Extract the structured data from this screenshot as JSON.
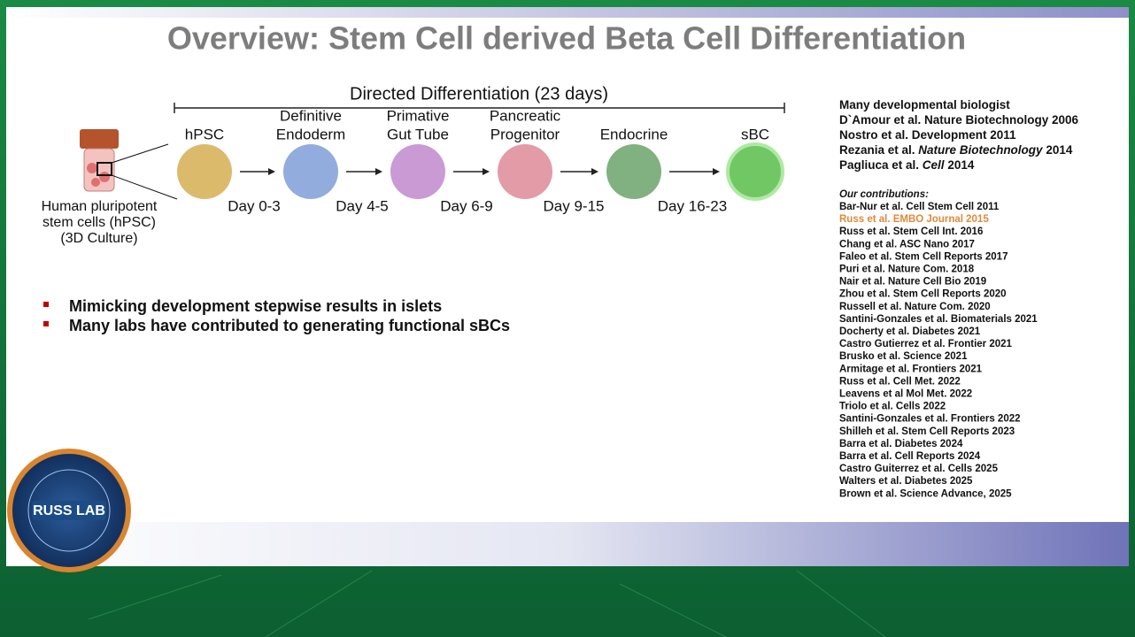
{
  "slide": {
    "title": "Overview: Stem Cell derived Beta Cell Differentiation",
    "diagram": {
      "bracket_label": "Directed Differentiation (23 days)",
      "source": {
        "lines": [
          "Human pluripotent",
          "stem cells (hPSC)",
          "(3D Culture)"
        ]
      },
      "stages": [
        {
          "lines": [
            "hPSC"
          ],
          "color": "#d8b25c"
        },
        {
          "lines": [
            "Definitive",
            "Endoderm"
          ],
          "color": "#86a3d9"
        },
        {
          "lines": [
            "Primative",
            "Gut Tube"
          ],
          "color": "#c48fd0"
        },
        {
          "lines": [
            "Pancreatic",
            "Progenitor"
          ],
          "color": "#e0909d"
        },
        {
          "lines": [
            "Endocrine"
          ],
          "color": "#73a873"
        },
        {
          "lines": [
            "sBC"
          ],
          "color": "#63c255"
        }
      ],
      "days": [
        "Day 0-3",
        "Day 4-5",
        "Day 6-9",
        "Day 9-15",
        "Day 16-23"
      ]
    },
    "bullets": [
      "Mimicking development stepwise results in islets",
      "Many labs have contributed to generating functional sBCs"
    ],
    "key_references": [
      {
        "parts": [
          "Many developmental biologist"
        ]
      },
      {
        "parts": [
          "D`Amour et al. Nature Biotechnology 2006"
        ]
      },
      {
        "parts": [
          "Nostro et al. Development 2011"
        ]
      },
      {
        "parts": [
          "Rezania et al. ",
          "Nature Biotechnology",
          " 2014"
        ]
      },
      {
        "parts": [
          "Pagliuca et al. ",
          "Cell",
          " 2014"
        ]
      }
    ],
    "contributions": {
      "heading": "Our contributions:",
      "items": [
        "Bar-Nur et al. Cell Stem Cell 2011",
        {
          "text": "Russ et al. EMBO Journal 2015",
          "color": "#e0893a"
        },
        "Russ et al. Stem Cell Int. 2016",
        "Chang et al. ASC Nano 2017",
        "Faleo et al. Stem Cell Reports 2017",
        "Puri et al. Nature Com. 2018",
        "Nair et al. Nature Cell Bio 2019",
        "Zhou et al. Stem Cell Reports 2020",
        "Russell et al. Nature Com. 2020",
        "Santini-Gonzales et al. Biomaterials 2021",
        "Docherty et al. Diabetes 2021",
        "Castro Gutierrez et al. Frontier 2021",
        "Brusko et al. Science 2021",
        "Armitage et al. Frontiers 2021",
        "Russ et al. Cell Met. 2022",
        "Leavens et al Mol Met. 2022",
        "Triolo et al. Cells 2022",
        "Santini-Gonzales et al. Frontiers 2022",
        "Shilleh et al. Stem Cell Reports 2023",
        "Barra et al. Diabetes 2024",
        "Barra et al. Cell Reports 2024",
        "Castro Guiterrez et al. Cells 2025",
        "Walters et al. Diabetes 2025",
        "Brown et al. Science Advance, 2025"
      ]
    },
    "logo": {
      "text": "RUSS LAB"
    }
  }
}
